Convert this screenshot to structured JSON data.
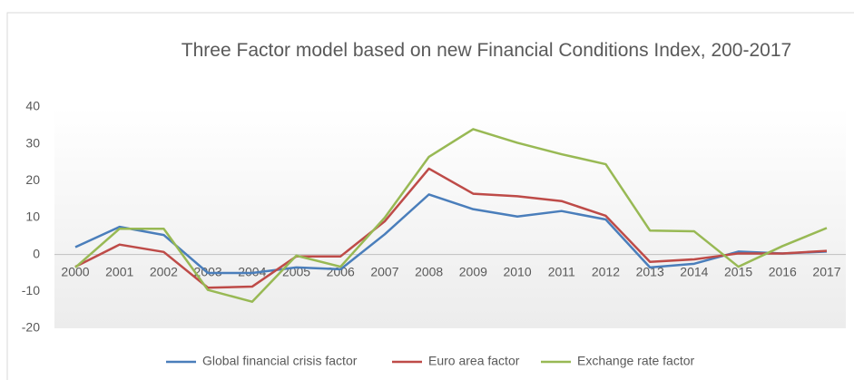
{
  "chart_data": {
    "type": "line",
    "title": "Three Factor model based on new Financial Conditions Index, 200-2017",
    "categories": [
      "2000",
      "2001",
      "2002",
      "2003",
      "2004",
      "2005",
      "2006",
      "2007",
      "2008",
      "2009",
      "2010",
      "2011",
      "2012",
      "2013",
      "2014",
      "2015",
      "2016",
      "2017"
    ],
    "series": [
      {
        "name": "Global financial crisis factor",
        "color": "#4a7ebb",
        "values": [
          2,
          7.5,
          5.3,
          -5,
          -5,
          -3.5,
          -4,
          5.5,
          16.3,
          12.3,
          10.3,
          11.8,
          9.5,
          -3.5,
          -2.5,
          0.8,
          0.3,
          0.8
        ]
      },
      {
        "name": "Euro area factor",
        "color": "#be4b48",
        "values": [
          -3.3,
          2.7,
          0.7,
          -9,
          -8.7,
          -0.5,
          -0.5,
          9,
          23.3,
          16.5,
          15.8,
          14.5,
          10.5,
          -2,
          -1.3,
          0.3,
          0.3,
          1
        ]
      },
      {
        "name": "Exchange rate factor",
        "color": "#98b954",
        "values": [
          -3.5,
          7,
          7,
          -9.6,
          -12.8,
          -0.3,
          -3.3,
          10,
          26.5,
          34,
          30.3,
          27.2,
          24.5,
          6.5,
          6.3,
          -3.3,
          2.3,
          7.2
        ]
      }
    ],
    "ylim": [
      -20,
      40
    ],
    "yticks": [
      -20,
      -10,
      0,
      10,
      20,
      30,
      40
    ],
    "legend": "bottom"
  }
}
